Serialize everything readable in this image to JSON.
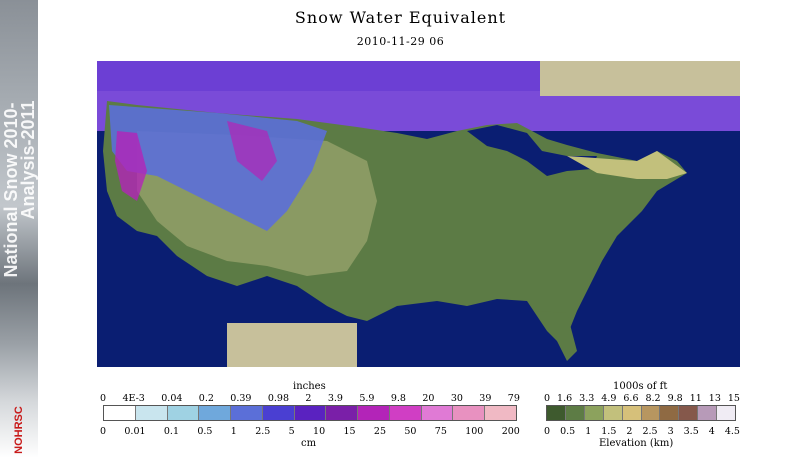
{
  "banner": {
    "text_line1": "National Snow 2010-",
    "text_line2": "Analysis-2011",
    "logo": "NOHRSC"
  },
  "header": {
    "title": "Snow Water Equivalent",
    "datetime": "2010-11-29 06"
  },
  "map": {
    "region": "Contiguous United States",
    "colors": {
      "ocean": "#0a1e72",
      "no_data": "#c7c09b",
      "canada_snow": "#7a4bd8",
      "lowland": "#5c7b45",
      "mountains": "#8a9a63"
    }
  },
  "swe_legend": {
    "title": "inches",
    "unit_label": "cm",
    "inch_ticks": [
      "0",
      "4E-3",
      "0.04",
      "0.2",
      "0.39",
      "0.98",
      "2",
      "3.9",
      "5.9",
      "9.8",
      "20",
      "30",
      "39",
      "79"
    ],
    "cm_ticks": [
      "0",
      "0.01",
      "0.1",
      "0.5",
      "1",
      "2.5",
      "5",
      "10",
      "15",
      "25",
      "50",
      "75",
      "100",
      "200"
    ],
    "colors": [
      "#ffffff",
      "#c9e5ee",
      "#9fd2e3",
      "#6fa8dc",
      "#5b6fd8",
      "#4a3fd2",
      "#5a22c0",
      "#7a1fa8",
      "#b324b8",
      "#d03ec4",
      "#e07ad5",
      "#e891c0",
      "#f0b9c4"
    ]
  },
  "elevation_legend": {
    "title": "1000s of ft",
    "unit_label": "Elevation (km)",
    "ft_ticks": [
      "0",
      "1.6",
      "3.3",
      "4.9",
      "6.6",
      "8.2",
      "9.8",
      "11",
      "13",
      "15"
    ],
    "km_ticks": [
      "0",
      "0.5",
      "1",
      "1.5",
      "2",
      "2.5",
      "3",
      "3.5",
      "4",
      "4.5"
    ],
    "colors": [
      "#3e5a2e",
      "#5d7c45",
      "#8ca25d",
      "#c2c07c",
      "#d6c07a",
      "#b79660",
      "#8f6a43",
      "#85584b",
      "#b79ab8",
      "#f0ecf4"
    ]
  }
}
